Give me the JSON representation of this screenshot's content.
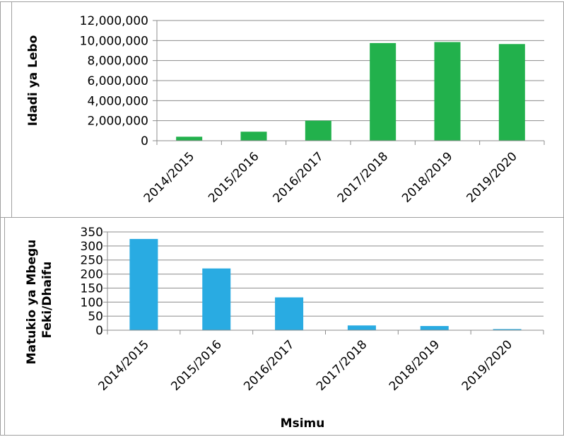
{
  "chart_data": [
    {
      "type": "bar",
      "categories": [
        "2014/2015",
        "2015/2016",
        "2016/2017",
        "2017/2018",
        "2018/2019",
        "2019/2020"
      ],
      "values": [
        400000,
        900000,
        2000000,
        9750000,
        9850000,
        9650000
      ],
      "ylabel": "Idadi ya Lebo",
      "xlabel": "",
      "ylim": [
        0,
        12000000
      ],
      "yticks": [
        0,
        2000000,
        4000000,
        6000000,
        8000000,
        10000000,
        12000000
      ],
      "ytick_labels": [
        "0",
        "2,000,000",
        "4,000,000",
        "6,000,000",
        "8,000,000",
        "10,000,000",
        "12,000,000"
      ],
      "grid": true,
      "color": "#22b14c"
    },
    {
      "type": "bar",
      "categories": [
        "2014/2015",
        "2015/2016",
        "2016/2017",
        "2017/2018",
        "2018/2019",
        "2019/2020"
      ],
      "values": [
        325,
        220,
        117,
        17,
        15,
        4
      ],
      "ylabel": [
        "Matukio ya Mbegu",
        "Feki/Dhaifu"
      ],
      "xlabel": "Msimu",
      "ylim": [
        0,
        350
      ],
      "yticks": [
        0,
        50,
        100,
        150,
        200,
        250,
        300,
        350
      ],
      "ytick_labels": [
        "0",
        "50",
        "100",
        "150",
        "200",
        "250",
        "300",
        "350"
      ],
      "grid": true,
      "color": "#29abe2"
    }
  ]
}
